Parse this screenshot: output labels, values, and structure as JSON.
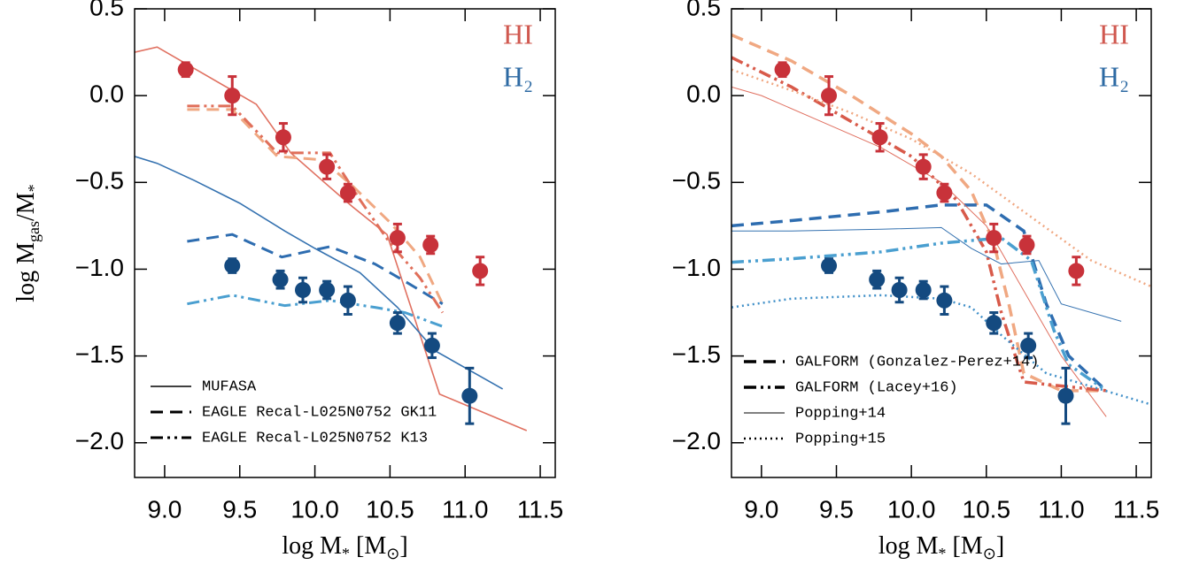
{
  "chart_data": [
    {
      "type": "line",
      "ylabel": [
        "log M",
        "gas",
        "/M",
        "*"
      ],
      "xlabel": [
        "log M",
        "*",
        " [M",
        "⊙",
        "]"
      ],
      "xlim": [
        8.8,
        11.6
      ],
      "ylim": [
        -2.2,
        0.5
      ],
      "xticks": [
        {
          "value": 9,
          "label": "9.0"
        },
        {
          "value": 9.5,
          "label": "9.5"
        },
        {
          "value": 10,
          "label": "10.0"
        },
        {
          "value": 10.5,
          "label": "10.5"
        },
        {
          "value": 11,
          "label": "11.0"
        },
        {
          "value": 11.5,
          "label": "11.5"
        }
      ],
      "yticks": [
        {
          "value": 0.5,
          "label": "0.5"
        },
        {
          "value": 0,
          "label": "0.0"
        },
        {
          "value": -0.5,
          "label": "−0.5"
        },
        {
          "value": -1,
          "label": "−1.0"
        },
        {
          "value": -1.5,
          "label": "−1.5"
        },
        {
          "value": -2,
          "label": "−2.0"
        }
      ],
      "annotations": [
        {
          "text": "HI",
          "color": "#d0584f"
        },
        {
          "text": "H₂",
          "color": "#2d6aa3"
        }
      ],
      "series": [
        {
          "name": "MUFASA",
          "color": "#e07060",
          "dash": "solid",
          "width": 1.6,
          "x": [
            8.8,
            8.95,
            9.61,
            9.84,
            10.05,
            10.25,
            10.48,
            10.83,
            11.41
          ],
          "values": [
            0.25,
            0.28,
            -0.05,
            -0.33,
            -0.49,
            -0.64,
            -0.8,
            -1.72,
            -1.93
          ]
        },
        {
          "color": "#3572b0",
          "dash": "solid",
          "width": 1.6,
          "x": [
            8.8,
            8.95,
            9.2,
            9.5,
            9.8,
            10.0,
            10.3,
            10.55,
            10.8,
            11.25
          ],
          "values": [
            -0.35,
            -0.39,
            -0.49,
            -0.62,
            -0.78,
            -0.88,
            -1.02,
            -1.22,
            -1.47,
            -1.69
          ]
        },
        {
          "name": "EAGLE Recal-L025N0752 GK11",
          "color": "#f0a882",
          "dash": "dashed",
          "width": 3,
          "x": [
            9.15,
            9.45,
            9.75,
            10.05,
            10.25,
            10.5,
            10.7,
            10.85
          ],
          "values": [
            -0.08,
            -0.08,
            -0.35,
            -0.37,
            -0.52,
            -0.73,
            -0.93,
            -1.2
          ]
        },
        {
          "color": "#2e6db0",
          "dash": "dashed",
          "width": 3,
          "x": [
            9.15,
            9.45,
            9.78,
            10.1,
            10.4,
            10.6,
            10.85
          ],
          "values": [
            -0.84,
            -0.8,
            -0.93,
            -0.87,
            -0.97,
            -1.07,
            -1.2
          ]
        },
        {
          "name": "EAGLE Recal-L025N0752 K13",
          "color": "#e06f5a",
          "dash": "dashdotdot",
          "width": 3,
          "x": [
            9.15,
            9.45,
            9.75,
            10.1,
            10.3,
            10.5,
            10.7,
            10.85
          ],
          "values": [
            -0.06,
            -0.06,
            -0.33,
            -0.33,
            -0.6,
            -0.85,
            -1.05,
            -1.25
          ]
        },
        {
          "color": "#4a9fd0",
          "dash": "dashdotdot",
          "width": 3,
          "x": [
            9.15,
            9.45,
            9.8,
            10.1,
            10.4,
            10.6,
            10.85
          ],
          "values": [
            -1.2,
            -1.15,
            -1.21,
            -1.18,
            -1.22,
            -1.25,
            -1.33
          ]
        }
      ],
      "points": [
        {
          "color": "#c8323a",
          "x": [
            9.14,
            9.45,
            9.79,
            10.08,
            10.22,
            10.55,
            10.77,
            11.1
          ],
          "values": [
            0.15,
            0.0,
            -0.24,
            -0.41,
            -0.56,
            -0.82,
            -0.86,
            -1.01
          ],
          "errors": [
            0.04,
            0.11,
            0.08,
            0.07,
            0.05,
            0.08,
            0.05,
            0.08
          ]
        },
        {
          "color": "#144a80",
          "x": [
            9.45,
            9.77,
            9.92,
            10.08,
            10.22,
            10.55,
            10.78,
            11.03
          ],
          "values": [
            -0.98,
            -1.06,
            -1.12,
            -1.12,
            -1.18,
            -1.31,
            -1.44,
            -1.73
          ],
          "errors": [
            0.04,
            0.05,
            0.07,
            0.05,
            0.08,
            0.06,
            0.07,
            0.16
          ]
        }
      ]
    },
    {
      "type": "line",
      "xlabel": [
        "log M",
        "*",
        " [M",
        "⊙",
        "]"
      ],
      "xlim": [
        8.8,
        11.6
      ],
      "ylim": [
        -2.2,
        0.5
      ],
      "xticks": [
        {
          "value": 9,
          "label": "9.0"
        },
        {
          "value": 9.5,
          "label": "9.5"
        },
        {
          "value": 10,
          "label": "10.0"
        },
        {
          "value": 10.5,
          "label": "10.5"
        },
        {
          "value": 11,
          "label": "11.0"
        },
        {
          "value": 11.5,
          "label": "11.5"
        }
      ],
      "yticks": [
        {
          "value": 0.5,
          "label": "0.5"
        },
        {
          "value": 0,
          "label": "0.0"
        },
        {
          "value": -0.5,
          "label": "−0.5"
        },
        {
          "value": -1,
          "label": "−1.0"
        },
        {
          "value": -1.5,
          "label": "−1.5"
        },
        {
          "value": -2,
          "label": "−2.0"
        }
      ],
      "annotations": [
        {
          "text": "HI",
          "color": "#d0584f"
        },
        {
          "text": "H₂",
          "color": "#2d6aa3"
        }
      ],
      "series": [
        {
          "name": "GALFORM (Gonzalez-Perez+14)",
          "color": "#f0a882",
          "dash": "dashed",
          "width": 3.5,
          "x": [
            8.8,
            9.2,
            9.6,
            10.0,
            10.2,
            10.4,
            10.55,
            10.65,
            10.75,
            11.0,
            11.3
          ],
          "values": [
            0.35,
            0.2,
            0.0,
            -0.22,
            -0.35,
            -0.55,
            -0.85,
            -1.2,
            -1.6,
            -1.7,
            -1.7
          ]
        },
        {
          "color": "#2e6db0",
          "dash": "dashed",
          "width": 3.5,
          "x": [
            8.8,
            9.2,
            9.8,
            10.2,
            10.5,
            10.75,
            10.9,
            11.05,
            11.3
          ],
          "values": [
            -0.75,
            -0.72,
            -0.67,
            -0.63,
            -0.63,
            -0.78,
            -1.2,
            -1.5,
            -1.7
          ]
        },
        {
          "name": "GALFORM (Lacey+16)",
          "color": "#d85a4a",
          "dash": "dashdotdot",
          "width": 3.5,
          "x": [
            8.8,
            9.2,
            9.6,
            10.0,
            10.3,
            10.5,
            10.6,
            10.75,
            11.3
          ],
          "values": [
            0.22,
            0.05,
            -0.15,
            -0.35,
            -0.6,
            -0.9,
            -1.25,
            -1.65,
            -1.7
          ]
        },
        {
          "color": "#4a9fd0",
          "dash": "dashdotdot",
          "width": 3.5,
          "x": [
            8.8,
            9.2,
            9.8,
            10.2,
            10.6,
            10.8,
            10.95,
            11.05,
            11.3
          ],
          "values": [
            -0.96,
            -0.94,
            -0.9,
            -0.85,
            -0.82,
            -0.95,
            -1.35,
            -1.55,
            -1.7
          ]
        },
        {
          "name": "Popping+14",
          "color": "#e07060",
          "dash": "solid",
          "width": 1,
          "x": [
            8.8,
            9.0,
            9.4,
            9.8,
            10.2,
            10.5,
            10.8,
            11.0,
            11.3
          ],
          "values": [
            0.05,
            0.0,
            -0.15,
            -0.3,
            -0.5,
            -0.75,
            -1.2,
            -1.5,
            -1.85
          ]
        },
        {
          "color": "#3572b0",
          "dash": "solid",
          "width": 1,
          "x": [
            8.8,
            9.2,
            9.8,
            10.2,
            10.4,
            10.6,
            10.85,
            11.0,
            11.4
          ],
          "values": [
            -0.78,
            -0.78,
            -0.77,
            -0.76,
            -0.88,
            -0.97,
            -0.95,
            -1.2,
            -1.3
          ]
        },
        {
          "name": "Popping+15",
          "color": "#f0a882",
          "dash": "dotted",
          "width": 2.5,
          "x": [
            8.8,
            9.2,
            9.6,
            10.0,
            10.4,
            10.8,
            11.2,
            11.6
          ],
          "values": [
            0.15,
            0.03,
            -0.1,
            -0.25,
            -0.45,
            -0.7,
            -0.95,
            -1.1
          ]
        },
        {
          "color": "#3f8fc8",
          "dash": "dotted",
          "width": 2.5,
          "x": [
            8.8,
            9.2,
            9.8,
            10.2,
            10.4,
            10.6,
            10.9,
            11.1,
            11.6
          ],
          "values": [
            -1.22,
            -1.17,
            -1.15,
            -1.17,
            -1.22,
            -1.38,
            -1.6,
            -1.65,
            -1.78
          ]
        }
      ],
      "points": [
        {
          "color": "#c8323a",
          "x": [
            9.14,
            9.45,
            9.79,
            10.08,
            10.22,
            10.55,
            10.77,
            11.1
          ],
          "values": [
            0.15,
            0.0,
            -0.24,
            -0.41,
            -0.56,
            -0.82,
            -0.86,
            -1.01
          ],
          "errors": [
            0.04,
            0.11,
            0.08,
            0.07,
            0.05,
            0.08,
            0.05,
            0.08
          ]
        },
        {
          "color": "#144a80",
          "x": [
            9.45,
            9.77,
            9.92,
            10.08,
            10.22,
            10.55,
            10.78,
            11.03
          ],
          "values": [
            -0.98,
            -1.06,
            -1.12,
            -1.12,
            -1.18,
            -1.31,
            -1.44,
            -1.73
          ],
          "errors": [
            0.04,
            0.05,
            0.07,
            0.05,
            0.08,
            0.06,
            0.07,
            0.16
          ]
        }
      ]
    }
  ]
}
